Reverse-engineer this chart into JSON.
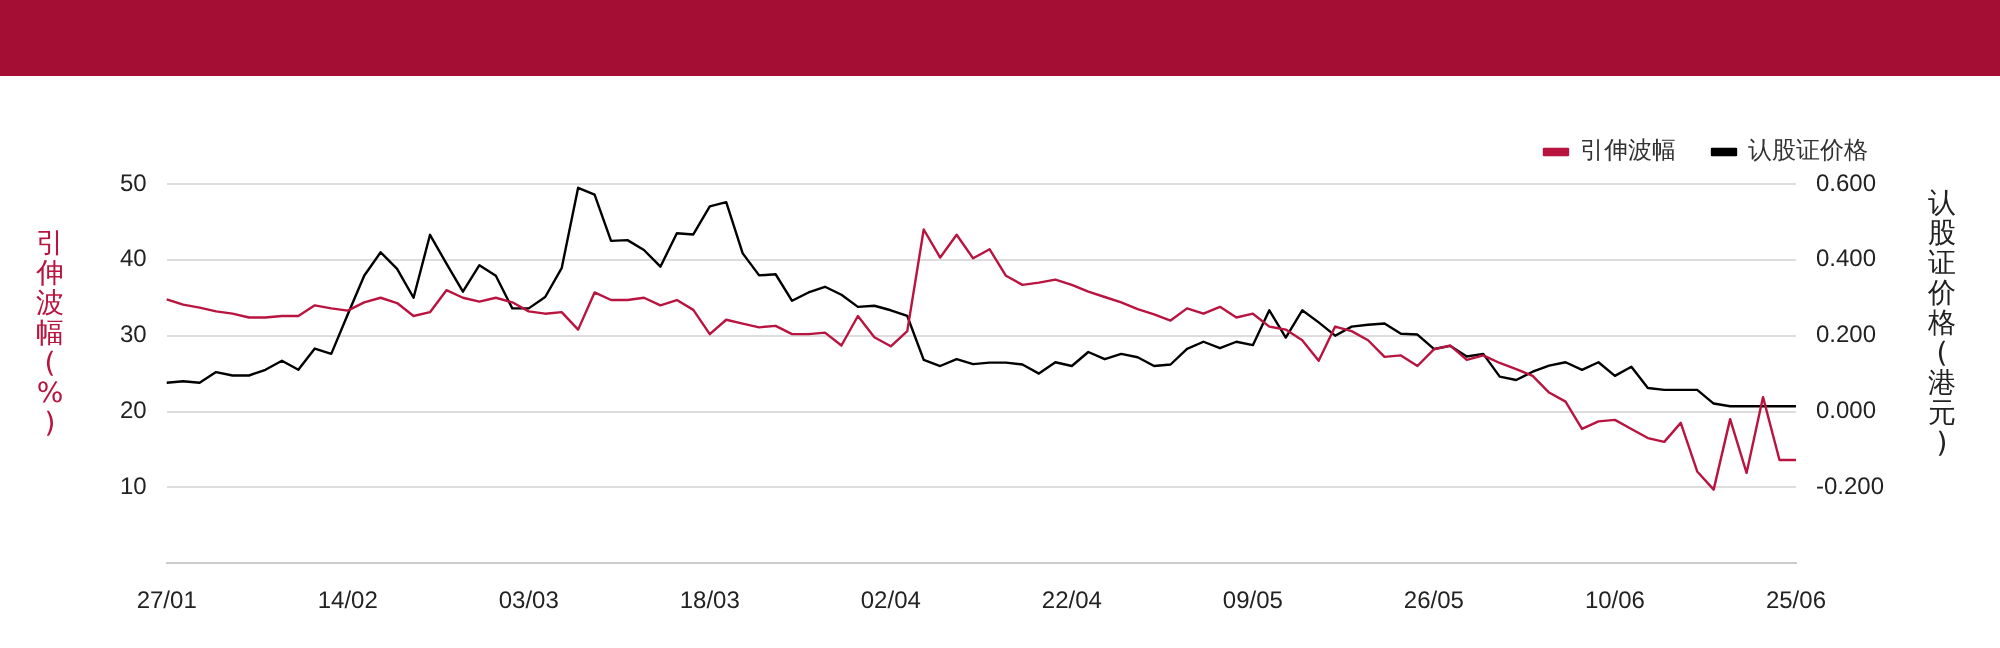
{
  "chart_data": {
    "type": "line",
    "ylabel": "引伸波幅(%)",
    "y2label": "认股证价格(港元)",
    "categories": [
      "27/01",
      null,
      null,
      null,
      null,
      null,
      null,
      null,
      null,
      null,
      null,
      "14/02",
      null,
      null,
      null,
      null,
      null,
      null,
      null,
      null,
      null,
      null,
      "03/03",
      null,
      null,
      null,
      null,
      null,
      null,
      null,
      null,
      null,
      null,
      "18/03",
      null,
      null,
      null,
      null,
      null,
      null,
      null,
      null,
      null,
      null,
      "02/04",
      null,
      null,
      null,
      null,
      null,
      null,
      null,
      null,
      null,
      null,
      "22/04",
      null,
      null,
      null,
      null,
      null,
      null,
      null,
      null,
      null,
      null,
      "09/05",
      null,
      null,
      null,
      null,
      null,
      null,
      null,
      null,
      null,
      null,
      "26/05",
      null,
      null,
      null,
      null,
      null,
      null,
      null,
      null,
      null,
      null,
      "10/06",
      null,
      null,
      null,
      null,
      null,
      null,
      null,
      null,
      null,
      null,
      "25/06"
    ],
    "series": [
      {
        "name": "引伸波幅",
        "color": "#b8143f",
        "values": [
          34.8,
          34.1,
          33.7,
          33.2,
          32.9,
          32.4,
          32.4,
          32.6,
          32.6,
          34.0,
          33.6,
          33.3,
          34.4,
          35.0,
          34.3,
          32.6,
          33.1,
          36.0,
          35.0,
          34.5,
          35.0,
          34.4,
          33.2,
          32.9,
          33.1,
          30.8,
          35.7,
          34.7,
          34.7,
          35.0,
          34.0,
          34.7,
          33.4,
          30.2,
          32.1,
          31.6,
          31.1,
          31.3,
          30.2,
          30.2,
          30.4,
          28.7,
          32.6,
          29.8,
          28.6,
          30.6,
          44.0,
          40.3,
          43.3,
          40.2,
          41.4,
          37.9,
          36.7,
          37.0,
          37.4,
          36.7,
          35.8,
          35.1,
          34.4,
          33.5,
          32.8,
          32.0,
          33.6,
          32.9,
          33.8,
          32.4,
          32.9,
          31.2,
          30.8,
          29.4,
          26.7,
          31.2,
          30.6,
          29.4,
          27.2,
          27.4,
          26.0,
          28.2,
          28.7,
          26.8,
          27.4,
          26.4,
          25.6,
          24.7,
          22.5,
          21.3,
          17.7,
          18.7,
          18.9,
          17.7,
          16.5,
          16.0,
          18.5,
          12.1,
          9.7,
          19.0,
          11.9,
          21.9,
          13.6,
          13.6
        ]
      },
      {
        "name": "认股证价格",
        "color": "#000000",
        "axis": "y2",
        "values": [
          0.076,
          0.08,
          0.076,
          0.104,
          0.095,
          0.095,
          0.11,
          0.134,
          0.11,
          0.166,
          0.152,
          0.256,
          0.358,
          0.42,
          0.376,
          0.3,
          0.466,
          0.39,
          0.316,
          0.386,
          0.358,
          0.272,
          0.272,
          0.302,
          0.378,
          0.59,
          0.572,
          0.45,
          0.452,
          0.426,
          0.382,
          0.47,
          0.467,
          0.541,
          0.552,
          0.417,
          0.359,
          0.362,
          0.292,
          0.314,
          0.329,
          0.308,
          0.276,
          0.279,
          0.267,
          0.252,
          0.136,
          0.12,
          0.138,
          0.125,
          0.129,
          0.129,
          0.124,
          0.1,
          0.13,
          0.12,
          0.157,
          0.138,
          0.152,
          0.143,
          0.12,
          0.124,
          0.165,
          0.184,
          0.167,
          0.184,
          0.175,
          0.267,
          0.195,
          0.267,
          0.235,
          0.2,
          0.224,
          0.229,
          0.232,
          0.205,
          0.203,
          0.165,
          0.173,
          0.145,
          0.152,
          0.092,
          0.083,
          0.105,
          0.121,
          0.13,
          0.11,
          0.13,
          0.094,
          0.118,
          0.062,
          0.057,
          0.057,
          0.057,
          0.021,
          0.014,
          0.014,
          0.014,
          0.014,
          0.014
        ]
      }
    ],
    "ylim": [
      0,
      50
    ],
    "yticks": [
      10,
      20,
      30,
      40,
      50
    ],
    "y2lim": [
      -0.4,
      0.6
    ],
    "y2ticks": [
      {
        "value": -0.2,
        "label": "-0.200"
      },
      {
        "value": 0,
        "label": "0.000"
      },
      {
        "value": 0.2,
        "label": "0.200"
      },
      {
        "value": 0.4,
        "label": "0.400"
      },
      {
        "value": 0.6,
        "label": "0.600"
      }
    ],
    "grid": "y",
    "legend": "top right",
    "marker": "none",
    "line_style": "solid"
  }
}
